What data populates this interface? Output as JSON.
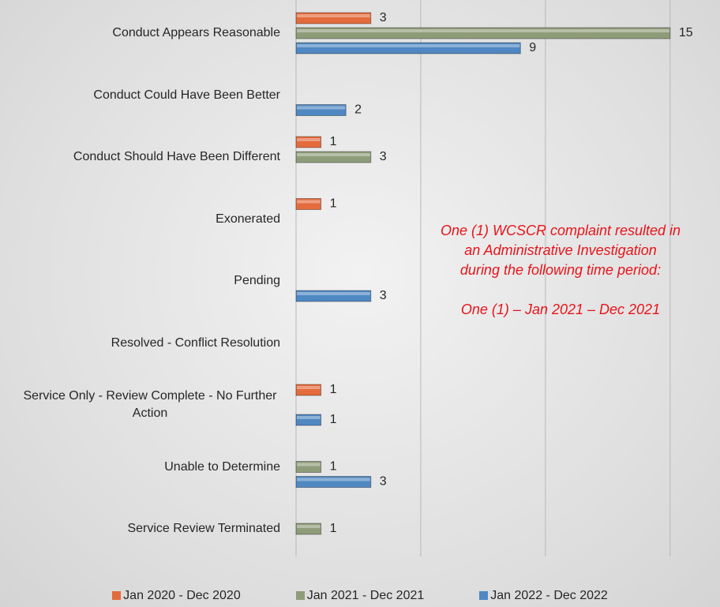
{
  "chart_data": {
    "type": "hbar",
    "categories": [
      "Conduct Appears Reasonable",
      "Conduct Could Have Been Better",
      "Conduct Should Have Been Different",
      "Exonerated",
      "Pending",
      "Resolved - Conflict Resolution",
      "Service Only - Review Complete - No Further Action",
      "Unable to Determine",
      "Service Review Terminated"
    ],
    "series": [
      {
        "name": "Jan 2020 - Dec 2020",
        "color": "#e36b3c",
        "values": [
          3,
          null,
          1,
          1,
          null,
          null,
          1,
          null,
          null
        ]
      },
      {
        "name": "Jan 2021 - Dec 2021",
        "color": "#8f9c7a",
        "values": [
          15,
          null,
          3,
          null,
          null,
          null,
          null,
          1,
          1
        ]
      },
      {
        "name": "Jan 2022 - Dec 2022",
        "color": "#4f88c2",
        "values": [
          9,
          2,
          null,
          null,
          3,
          null,
          1,
          3,
          null
        ]
      }
    ],
    "xlim": [
      0,
      17
    ],
    "xticks": [
      0,
      5,
      10,
      15
    ],
    "grid": true,
    "legend": "bottom",
    "annotation": {
      "lines": [
        "One (1) WCSCR complaint resulted in",
        "an Administrative Investigation",
        "during the following time period:"
      ],
      "period": "One (1) – Jan 2021 – Dec 2021",
      "color": "#e8141a"
    }
  }
}
